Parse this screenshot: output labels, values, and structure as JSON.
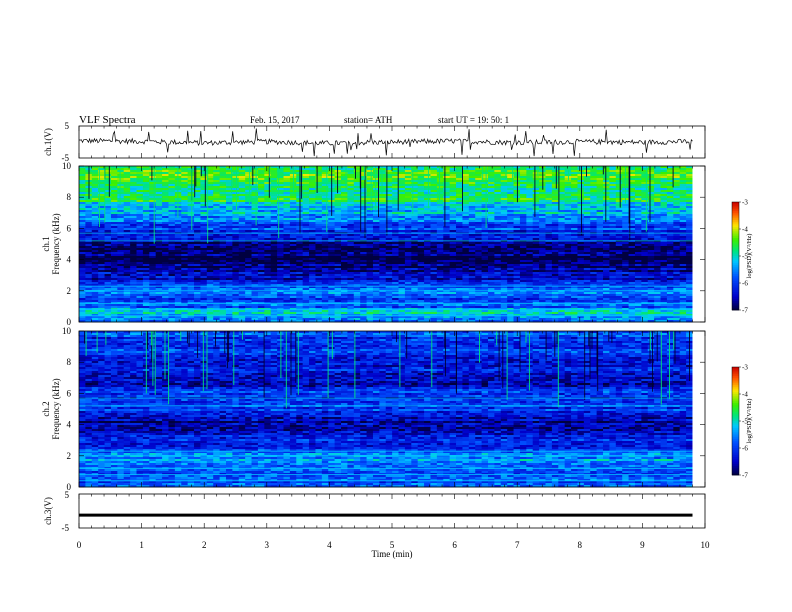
{
  "header": {
    "title": "VLF  Spectra",
    "date": "Feb. 15, 2017",
    "station": "station= ATH",
    "start": "start  UT  =    19: 50: 1"
  },
  "colors": {
    "noise_floor": "#000040",
    "mid": "#00e000",
    "high": "#ff0000",
    "trace": "#000000"
  },
  "chart_data": [
    {
      "type": "line",
      "panel": "ch1",
      "ylabel": "ch.1(V)",
      "xlim": [
        0,
        10
      ],
      "ylim": [
        -5,
        5
      ],
      "yticks": [
        "5",
        "-5"
      ],
      "x": [
        0,
        1,
        2,
        3,
        4,
        5,
        6,
        7,
        8,
        9,
        9.8
      ],
      "values": [
        0.4,
        0.2,
        -0.3,
        0.1,
        -0.4,
        0.0,
        0.3,
        -0.2,
        0.1,
        -0.1,
        0.2
      ]
    },
    {
      "type": "heatmap",
      "panel": "ch1_spec",
      "ylabel_top": "ch.1",
      "ylabel": "Frequency  (kHz)",
      "xlim": [
        0,
        10
      ],
      "ylim": [
        0,
        10
      ],
      "yticks": [
        "0",
        "2",
        "4",
        "6",
        "8",
        "10"
      ],
      "freq_khz": [
        0,
        0.5,
        1,
        1.5,
        2,
        2.5,
        3,
        3.5,
        4,
        4.5,
        5,
        5.5,
        6,
        6.5,
        7,
        7.5,
        8,
        8.5,
        9,
        9.5,
        10
      ],
      "mean_log_psd": [
        -5.6,
        -5.0,
        -5.8,
        -6.0,
        -5.6,
        -6.2,
        -6.5,
        -6.7,
        -6.9,
        -6.9,
        -6.7,
        -6.4,
        -6.0,
        -5.6,
        -5.3,
        -5.0,
        -4.8,
        -4.7,
        -4.6,
        -4.6,
        -4.7
      ],
      "colorbar": {
        "label": "log(PSD)(V²/Hz)",
        "range": [
          -7,
          -3
        ],
        "ticks": [
          "-3",
          "-4",
          "-5",
          "-6",
          "-7"
        ]
      }
    },
    {
      "type": "heatmap",
      "panel": "ch2_spec",
      "ylabel_top": "ch.2",
      "ylabel": "Frequency  (kHz)",
      "xlim": [
        0,
        10
      ],
      "ylim": [
        0,
        10
      ],
      "yticks": [
        "0",
        "2",
        "4",
        "6",
        "8",
        "10"
      ],
      "freq_khz": [
        0,
        0.5,
        1,
        1.5,
        2,
        2.5,
        3,
        3.5,
        4,
        4.5,
        5,
        5.5,
        6,
        6.5,
        7,
        7.5,
        8,
        8.5,
        9,
        9.5,
        10
      ],
      "mean_log_psd": [
        -6.0,
        -5.8,
        -5.7,
        -5.6,
        -5.4,
        -6.0,
        -6.2,
        -6.4,
        -6.6,
        -6.6,
        -6.0,
        -6.2,
        -6.0,
        -6.6,
        -6.4,
        -6.3,
        -6.2,
        -6.1,
        -6.0,
        -6.0,
        -5.8
      ],
      "colorbar": {
        "label": "log(PSD)(V²/Hz)",
        "range": [
          -7,
          -3
        ],
        "ticks": [
          "-3",
          "-4",
          "-5",
          "-6",
          "-7"
        ]
      }
    },
    {
      "type": "line",
      "panel": "ch3",
      "ylabel": "ch.3(V)",
      "xlim": [
        0,
        10
      ],
      "ylim": [
        -5,
        5
      ],
      "yticks": [
        "5",
        "-5"
      ],
      "x": [
        0,
        9.8
      ],
      "values": [
        -1.2,
        -1.2
      ]
    }
  ],
  "xaxis": {
    "label": "Time  (min)",
    "ticks": [
      "0",
      "1",
      "2",
      "3",
      "4",
      "5",
      "6",
      "7",
      "8",
      "9",
      "10"
    ]
  }
}
